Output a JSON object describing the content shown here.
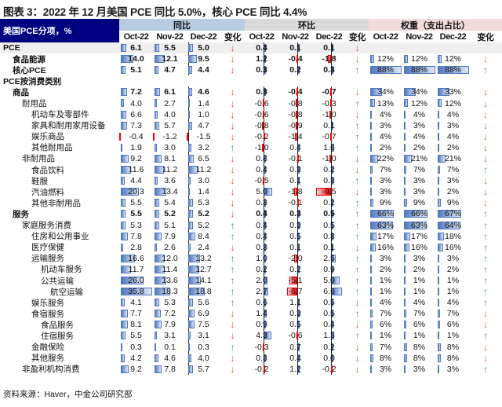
{
  "title": "图表 3：2022 年 12 月美国 PCE 同比 5.0%，核心 PCE 同比 4.4%",
  "header": {
    "corner": "美国PCE分项，%",
    "groups": [
      "同比",
      "环比",
      "权重（支出占比）"
    ],
    "months": [
      "Oct-22",
      "Nov-22",
      "Dec-22"
    ],
    "change": "变化"
  },
  "colors": {
    "corner_bg": "#000080",
    "yoy_bg": "#b8cce4",
    "mom_bg": "#d9d9d9",
    "weight_bg": "#f2dcdb",
    "up": "#3f8f6f",
    "down": "#e0522c",
    "bar": "#4f78c0",
    "neg_bar": "#ff0000"
  },
  "rows": [
    {
      "label": "PCE",
      "level": 0,
      "bold": true,
      "yoy": [
        "6.1",
        "5.5",
        "5.0"
      ],
      "yc": "down",
      "mom": [
        "0.4",
        "0.1",
        "0.1"
      ],
      "mc": "down",
      "w": [],
      "wc": ""
    },
    {
      "label": "食品能源",
      "level": 1,
      "bold": true,
      "yoy": [
        "14.0",
        "12.1",
        "9.5"
      ],
      "yc": "down",
      "mom": [
        "1.2",
        "-0.4",
        "-1.8"
      ],
      "mc": "down",
      "w": [
        "12%",
        "12%",
        "12%"
      ],
      "wc": "down"
    },
    {
      "label": "核心PCE",
      "level": 1,
      "bold": true,
      "yoy": [
        "5.1",
        "4.7",
        "4.4"
      ],
      "yc": "down",
      "mom": [
        "0.3",
        "0.2",
        "0.3"
      ],
      "mc": "up",
      "w": [
        "88%",
        "88%",
        "88%"
      ],
      "wc": "up"
    },
    {
      "label": "PCE按消费类别",
      "level": 0,
      "bold": true,
      "yoy": [],
      "yc": "",
      "mom": [],
      "mc": "",
      "w": [],
      "wc": ""
    },
    {
      "label": "商品",
      "level": 1,
      "bold": true,
      "yoy": [
        "7.2",
        "6.1",
        "4.6"
      ],
      "yc": "down",
      "mom": [
        "0.3",
        "-0.4",
        "-0.7"
      ],
      "mc": "down",
      "w": [
        "34%",
        "34%",
        "33%"
      ],
      "wc": "down"
    },
    {
      "label": "耐用品",
      "level": 2,
      "bold": false,
      "yoy": [
        "4.0",
        "2.7",
        "1.4"
      ],
      "yc": "down",
      "mom": [
        "-0.6",
        "-0.8",
        "-0.3"
      ],
      "mc": "up",
      "w": [
        "13%",
        "12%",
        "12%"
      ],
      "wc": "down"
    },
    {
      "label": "机动车及零部件",
      "level": 3,
      "bold": false,
      "yoy": [
        "6.6",
        "4.0",
        "1.0"
      ],
      "yc": "down",
      "mom": [
        "-0.6",
        "-0.8",
        "-1.0"
      ],
      "mc": "down",
      "w": [
        "4%",
        "4%",
        "4%"
      ],
      "wc": "down"
    },
    {
      "label": "家具和耐用家用设备",
      "level": 3,
      "bold": false,
      "yoy": [
        "7.3",
        "5.7",
        "4.7"
      ],
      "yc": "down",
      "mom": [
        "-0.8",
        "-0.9",
        "0.1"
      ],
      "mc": "up",
      "w": [
        "3%",
        "3%",
        "3%"
      ],
      "wc": "down"
    },
    {
      "label": "娱乐商品",
      "level": 3,
      "bold": false,
      "yoy": [
        "-0.4",
        "-1.2",
        "-1.5"
      ],
      "yc": "down",
      "mom": [
        "-0.2",
        "-1.4",
        "-0.7"
      ],
      "mc": "up",
      "w": [
        "4%",
        "4%",
        "4%"
      ],
      "wc": "down"
    },
    {
      "label": "其他耐用品",
      "level": 3,
      "bold": false,
      "yoy": [
        "1.9",
        "3.0",
        "3.2"
      ],
      "yc": "up",
      "mom": [
        "-1.0",
        "0.4",
        "1.6"
      ],
      "mc": "up",
      "w": [
        "2%",
        "2%",
        "2%"
      ],
      "wc": "down"
    },
    {
      "label": "非耐用品",
      "level": 2,
      "bold": false,
      "yoy": [
        "9.2",
        "8.1",
        "6.5"
      ],
      "yc": "down",
      "mom": [
        "0.8",
        "-0.1",
        "-1.0"
      ],
      "mc": "down",
      "w": [
        "22%",
        "21%",
        "21%"
      ],
      "wc": "down"
    },
    {
      "label": "食品饮料",
      "level": 3,
      "bold": false,
      "yoy": [
        "11.6",
        "11.2",
        "11.2"
      ],
      "yc": "down",
      "mom": [
        "0.4",
        "0.3",
        "0.2"
      ],
      "mc": "down",
      "w": [
        "7%",
        "7%",
        "7%"
      ],
      "wc": "up"
    },
    {
      "label": "鞋服",
      "level": 3,
      "bold": false,
      "yoy": [
        "4.4",
        "3.6",
        "3.0"
      ],
      "yc": "down",
      "mom": [
        "-0.5",
        "0.1",
        "0.3"
      ],
      "mc": "up",
      "w": [
        "3%",
        "3%",
        "3%"
      ],
      "wc": "down"
    },
    {
      "label": "汽油燃料",
      "level": 3,
      "bold": false,
      "yoy": [
        "20.3",
        "13.4",
        "1.4"
      ],
      "yc": "down",
      "mom": [
        "5.0",
        "-1.8",
        "-9.5"
      ],
      "mc": "down",
      "w": [
        "3%",
        "3%",
        "2%"
      ],
      "wc": "down"
    },
    {
      "label": "其他非耐用品",
      "level": 3,
      "bold": false,
      "yoy": [
        "5.5",
        "5.4",
        "5.3"
      ],
      "yc": "down",
      "mom": [
        "0.3",
        "-0.1",
        "0.2"
      ],
      "mc": "up",
      "w": [
        "9%",
        "9%",
        "9%"
      ],
      "wc": "down"
    },
    {
      "label": "服务",
      "level": 1,
      "bold": true,
      "yoy": [
        "5.5",
        "5.2",
        "5.2"
      ],
      "yc": "down",
      "mom": [
        "0.4",
        "0.3",
        "0.5"
      ],
      "mc": "up",
      "w": [
        "66%",
        "66%",
        "67%"
      ],
      "wc": "up"
    },
    {
      "label": "家庭服务消费",
      "level": 2,
      "bold": false,
      "yoy": [
        "5.3",
        "5.1",
        "5.2"
      ],
      "yc": "up",
      "mom": [
        "0.4",
        "0.3",
        "0.5"
      ],
      "mc": "up",
      "w": [
        "63%",
        "63%",
        "64%"
      ],
      "wc": "up"
    },
    {
      "label": "住房和公用事业",
      "level": 3,
      "bold": false,
      "yoy": [
        "7.8",
        "7.9",
        "8.4"
      ],
      "yc": "up",
      "mom": [
        "0.4",
        "0.5",
        "0.8"
      ],
      "mc": "up",
      "w": [
        "17%",
        "17%",
        "18%"
      ],
      "wc": "up"
    },
    {
      "label": "医疗保健",
      "level": 3,
      "bold": false,
      "yoy": [
        "2.8",
        "2.6",
        "2.4"
      ],
      "yc": "down",
      "mom": [
        "0.3",
        "0.1",
        "0.1"
      ],
      "mc": "down",
      "w": [
        "16%",
        "16%",
        "16%"
      ],
      "wc": "up"
    },
    {
      "label": "运输服务",
      "level": 3,
      "bold": false,
      "yoy": [
        "16.6",
        "12.0",
        "13.2"
      ],
      "yc": "up",
      "mom": [
        "1.0",
        "-2.0",
        "2.5"
      ],
      "mc": "up",
      "w": [
        "3%",
        "3%",
        "3%"
      ],
      "wc": "up"
    },
    {
      "label": "机动车服务",
      "level": 4,
      "bold": false,
      "yoy": [
        "11.7",
        "11.4",
        "12.7"
      ],
      "yc": "up",
      "mom": [
        "0.2",
        "0.2",
        "0.9"
      ],
      "mc": "up",
      "w": [
        "2%",
        "2%",
        "2%"
      ],
      "wc": "up"
    },
    {
      "label": "公共运输",
      "level": 4,
      "bold": false,
      "yoy": [
        "26.0",
        "13.6",
        "14.1"
      ],
      "yc": "up",
      "mom": [
        "2.0",
        "-5.1",
        "5.0"
      ],
      "mc": "up",
      "w": [
        "1%",
        "1%",
        "1%"
      ],
      "wc": "up"
    },
    {
      "label": "航空运输",
      "level": 5,
      "bold": false,
      "yoy": [
        "35.8",
        "18.3",
        "18.8"
      ],
      "yc": "up",
      "mom": [
        "2.7",
        "-6.7",
        "6.6"
      ],
      "mc": "up",
      "w": [
        "1%",
        "1%",
        "1%"
      ],
      "wc": "up"
    },
    {
      "label": "娱乐服务",
      "level": 3,
      "bold": false,
      "yoy": [
        "4.1",
        "5.3",
        "5.6"
      ],
      "yc": "up",
      "mom": [
        "0.6",
        "1.1",
        "0.5"
      ],
      "mc": "down",
      "w": [
        "4%",
        "4%",
        "4%"
      ],
      "wc": "up"
    },
    {
      "label": "食宿服务",
      "level": 3,
      "bold": false,
      "yoy": [
        "7.7",
        "7.2",
        "6.9"
      ],
      "yc": "down",
      "mom": [
        "1.4",
        "0.3",
        "0.5"
      ],
      "mc": "up",
      "w": [
        "7%",
        "7%",
        "7%"
      ],
      "wc": "down"
    },
    {
      "label": "食品服务",
      "level": 4,
      "bold": false,
      "yoy": [
        "8.1",
        "7.9",
        "7.5"
      ],
      "yc": "down",
      "mom": [
        "0.9",
        "0.5",
        "0.4"
      ],
      "mc": "down",
      "w": [
        "6%",
        "6%",
        "6%"
      ],
      "wc": "down"
    },
    {
      "label": "住宿服务",
      "level": 4,
      "bold": false,
      "yoy": [
        "5.5",
        "3.1",
        "3.1"
      ],
      "yc": "down",
      "mom": [
        "4.3",
        "-0.6",
        "1.3"
      ],
      "mc": "up",
      "w": [
        "1%",
        "1%",
        "1%"
      ],
      "wc": "up"
    },
    {
      "label": "金融保险",
      "level": 3,
      "bold": false,
      "yoy": [
        "0.3",
        "0.1",
        "0.3"
      ],
      "yc": "up",
      "mom": [
        "-0.3",
        "0.7",
        "0.2"
      ],
      "mc": "down",
      "w": [
        "7%",
        "8%",
        "8%"
      ],
      "wc": "down"
    },
    {
      "label": "其他服务",
      "level": 3,
      "bold": false,
      "yoy": [
        "4.2",
        "4.6",
        "4.0"
      ],
      "yc": "down",
      "mom": [
        "0.3",
        "0.4",
        "0.0"
      ],
      "mc": "down",
      "w": [
        "8%",
        "8%",
        "8%"
      ],
      "wc": "down"
    },
    {
      "label": "非盈利机构消费",
      "level": 2,
      "bold": false,
      "yoy": [
        "9.2",
        "7.8",
        "5.7"
      ],
      "yc": "down",
      "mom": [
        "-0.2",
        "1.2",
        "-0.2"
      ],
      "mc": "down",
      "w": [
        "3%",
        "3%",
        "3%"
      ],
      "wc": "up"
    }
  ],
  "source": "资料来源：Haver，中金公司研究部"
}
